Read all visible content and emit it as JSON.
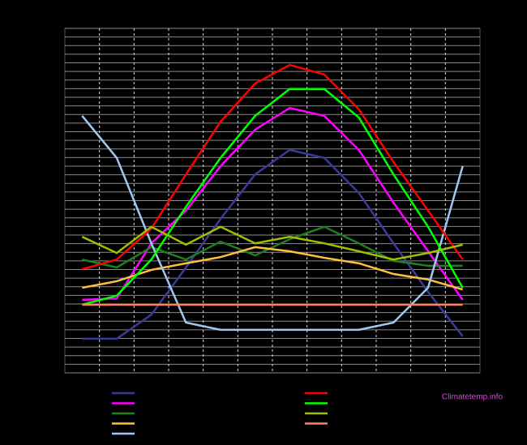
{
  "chart_data": {
    "type": "line",
    "source": "Climatetemp.info",
    "source_color": "#e040e0",
    "x": [
      1,
      2,
      3,
      4,
      5,
      6,
      7,
      8,
      9,
      10,
      11,
      12
    ],
    "xlim": [
      0.5,
      12.5
    ],
    "xticks": [
      1.5,
      2.5,
      3.5,
      4.5,
      5.5,
      6.5,
      7.5,
      8.5,
      9.5,
      10.5,
      11.5
    ],
    "ylim": [
      0,
      100
    ],
    "yticks": [
      0,
      2.5,
      5,
      7.5,
      10,
      12.5,
      15,
      17.5,
      20,
      22.5,
      25,
      27.5,
      30,
      32.5,
      35,
      37.5,
      40,
      42.5,
      45,
      47.5,
      50,
      52.5,
      55,
      57.5,
      60,
      62.5,
      65,
      67.5,
      70,
      72.5,
      75,
      77.5,
      80,
      82.5,
      85,
      87.5,
      90,
      92.5,
      95,
      97.5,
      100
    ],
    "grid": true,
    "series": [
      {
        "color": "#3a3a9a",
        "values": [
          9.9,
          9.9,
          16.9,
          30.6,
          44.7,
          57.6,
          64.7,
          62.4,
          52.2,
          37.6,
          23.5,
          10.6
        ]
      },
      {
        "color": "#ff00ff",
        "values": [
          21.2,
          21.6,
          37.6,
          47.1,
          60,
          70.6,
          76.9,
          74.6,
          64.7,
          49.4,
          35.3,
          21.2
        ]
      },
      {
        "color": "#208020",
        "values": [
          32.9,
          30.6,
          36.5,
          32.9,
          38.1,
          34.1,
          38.8,
          42.4,
          37.6,
          32.5,
          31.1,
          31.1
        ]
      },
      {
        "color": "#ffc040",
        "values": [
          24.7,
          26.6,
          29.9,
          31.8,
          33.6,
          36.5,
          35.3,
          33.4,
          31.8,
          28.7,
          27.1,
          24.2
        ]
      },
      {
        "color": "#a0c8f0",
        "values": [
          74.6,
          62.4,
          37.6,
          14.6,
          12.5,
          12.5,
          12.5,
          12.5,
          12.5,
          14.6,
          24.7,
          60
        ]
      },
      {
        "color": "#ff0000",
        "values": [
          30.1,
          32.9,
          41.9,
          57.6,
          72.9,
          84,
          89.4,
          86.6,
          76.5,
          61.2,
          47.1,
          32.9
        ]
      },
      {
        "color": "#00ff00",
        "values": [
          19.8,
          22.4,
          32.9,
          48.2,
          62.4,
          74.6,
          82.4,
          82.4,
          74.1,
          57.6,
          42.4,
          24.7
        ]
      },
      {
        "color": "#a0c000",
        "values": [
          39.5,
          34.8,
          42.4,
          37.2,
          42.4,
          37.6,
          39.5,
          37.6,
          35.3,
          32.9,
          34.8,
          37.2
        ]
      },
      {
        "color": "#ff8060",
        "values": [
          19.8,
          19.8,
          19.8,
          19.8,
          19.8,
          19.8,
          19.8,
          19.8,
          19.8,
          19.8,
          19.8,
          19.8
        ]
      }
    ]
  }
}
